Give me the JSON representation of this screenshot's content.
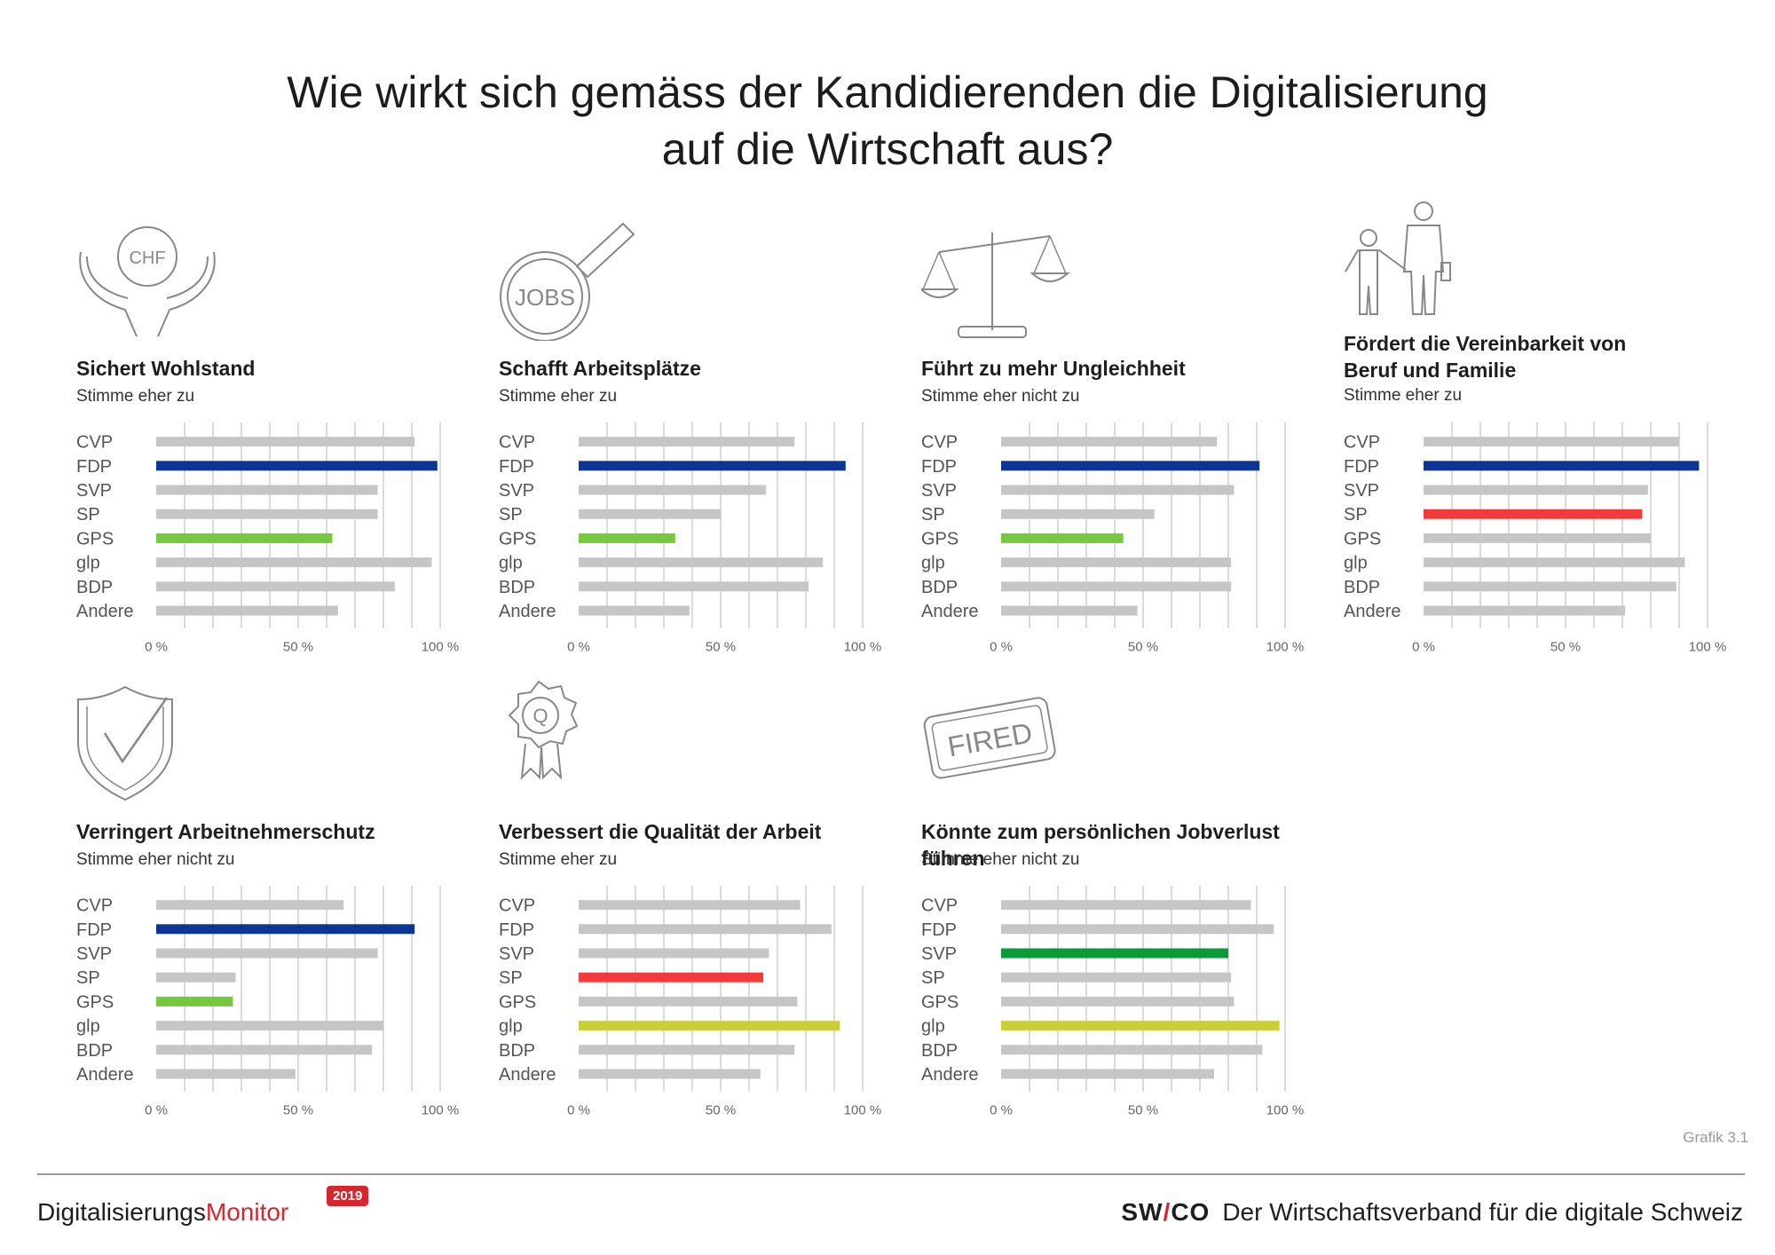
{
  "title": {
    "line1": "Wie wirkt sich gemäss der Kandidierenden die Digitalisierung",
    "line2": "auf die Wirtschaft aus?"
  },
  "icons": {
    "chf_label": "CHF",
    "jobs_label": "JOBS",
    "q_label": "Q",
    "fired_label": "FIRED"
  },
  "colors": {
    "grey": "#c6c6c6",
    "FDP": "#0c3596",
    "GPS": "#76c83c",
    "SP": "#f23a3a",
    "glp": "#c9cf39",
    "SVP": "#0a9a38",
    "grid": "#cfcfcf"
  },
  "tick_labels": [
    "0 %",
    "50 %",
    "100 %"
  ],
  "chart_data": [
    {
      "type": "bar",
      "title": "Sichert Wohlstand",
      "subtitle": "Stimme eher zu",
      "categories": [
        "CVP",
        "FDP",
        "SVP",
        "SP",
        "GPS",
        "glp",
        "BDP",
        "Andere"
      ],
      "values": [
        91,
        99,
        78,
        78,
        62,
        97,
        84,
        64
      ],
      "highlight": [
        "FDP",
        "GPS"
      ],
      "xlim": [
        0,
        100
      ]
    },
    {
      "type": "bar",
      "title": "Schafft Arbeitsplätze",
      "subtitle": "Stimme eher zu",
      "categories": [
        "CVP",
        "FDP",
        "SVP",
        "SP",
        "GPS",
        "glp",
        "BDP",
        "Andere"
      ],
      "values": [
        76,
        94,
        66,
        50,
        34,
        86,
        81,
        39
      ],
      "highlight": [
        "FDP",
        "GPS"
      ],
      "xlim": [
        0,
        100
      ]
    },
    {
      "type": "bar",
      "title": "Führt zu mehr Ungleichheit",
      "subtitle": "Stimme eher nicht zu",
      "categories": [
        "CVP",
        "FDP",
        "SVP",
        "SP",
        "GPS",
        "glp",
        "BDP",
        "Andere"
      ],
      "values": [
        76,
        91,
        82,
        54,
        43,
        81,
        81,
        48
      ],
      "highlight": [
        "FDP",
        "GPS"
      ],
      "xlim": [
        0,
        100
      ]
    },
    {
      "type": "bar",
      "title": "Fördert die Vereinbarkeit von Beruf und Familie",
      "subtitle": "Stimme eher zu",
      "categories": [
        "CVP",
        "FDP",
        "SVP",
        "SP",
        "GPS",
        "glp",
        "BDP",
        "Andere"
      ],
      "values": [
        90,
        97,
        79,
        77,
        80,
        92,
        89,
        71
      ],
      "highlight": [
        "FDP",
        "SP"
      ],
      "xlim": [
        0,
        100
      ]
    },
    {
      "type": "bar",
      "title": "Verringert Arbeitnehmerschutz",
      "subtitle": "Stimme eher nicht zu",
      "categories": [
        "CVP",
        "FDP",
        "SVP",
        "SP",
        "GPS",
        "glp",
        "BDP",
        "Andere"
      ],
      "values": [
        66,
        91,
        78,
        28,
        27,
        80,
        76,
        49
      ],
      "highlight": [
        "FDP",
        "GPS"
      ],
      "xlim": [
        0,
        100
      ]
    },
    {
      "type": "bar",
      "title": "Verbessert die Qualität der Arbeit",
      "subtitle": "Stimme eher zu",
      "categories": [
        "CVP",
        "FDP",
        "SVP",
        "SP",
        "GPS",
        "glp",
        "BDP",
        "Andere"
      ],
      "values": [
        78,
        89,
        67,
        65,
        77,
        92,
        76,
        64
      ],
      "highlight": [
        "SP",
        "glp"
      ],
      "xlim": [
        0,
        100
      ]
    },
    {
      "type": "bar",
      "title": "Könnte zum persönlichen Jobverlust führen",
      "subtitle": "Stimme eher nicht zu",
      "categories": [
        "CVP",
        "FDP",
        "SVP",
        "SP",
        "GPS",
        "glp",
        "BDP",
        "Andere"
      ],
      "values": [
        88,
        96,
        80,
        81,
        82,
        98,
        92,
        75
      ],
      "highlight": [
        "SVP",
        "glp"
      ],
      "xlim": [
        0,
        100
      ]
    }
  ],
  "footer": {
    "grafik": "Grafik 3.1",
    "brand_a": "Digitalisierungs",
    "brand_b": "Monitor",
    "year": "2019",
    "swico_a": "SW",
    "swico_slash": "/",
    "swico_b": "CO",
    "tagline": "Der Wirtschaftsverband für die digitale Schweiz"
  }
}
